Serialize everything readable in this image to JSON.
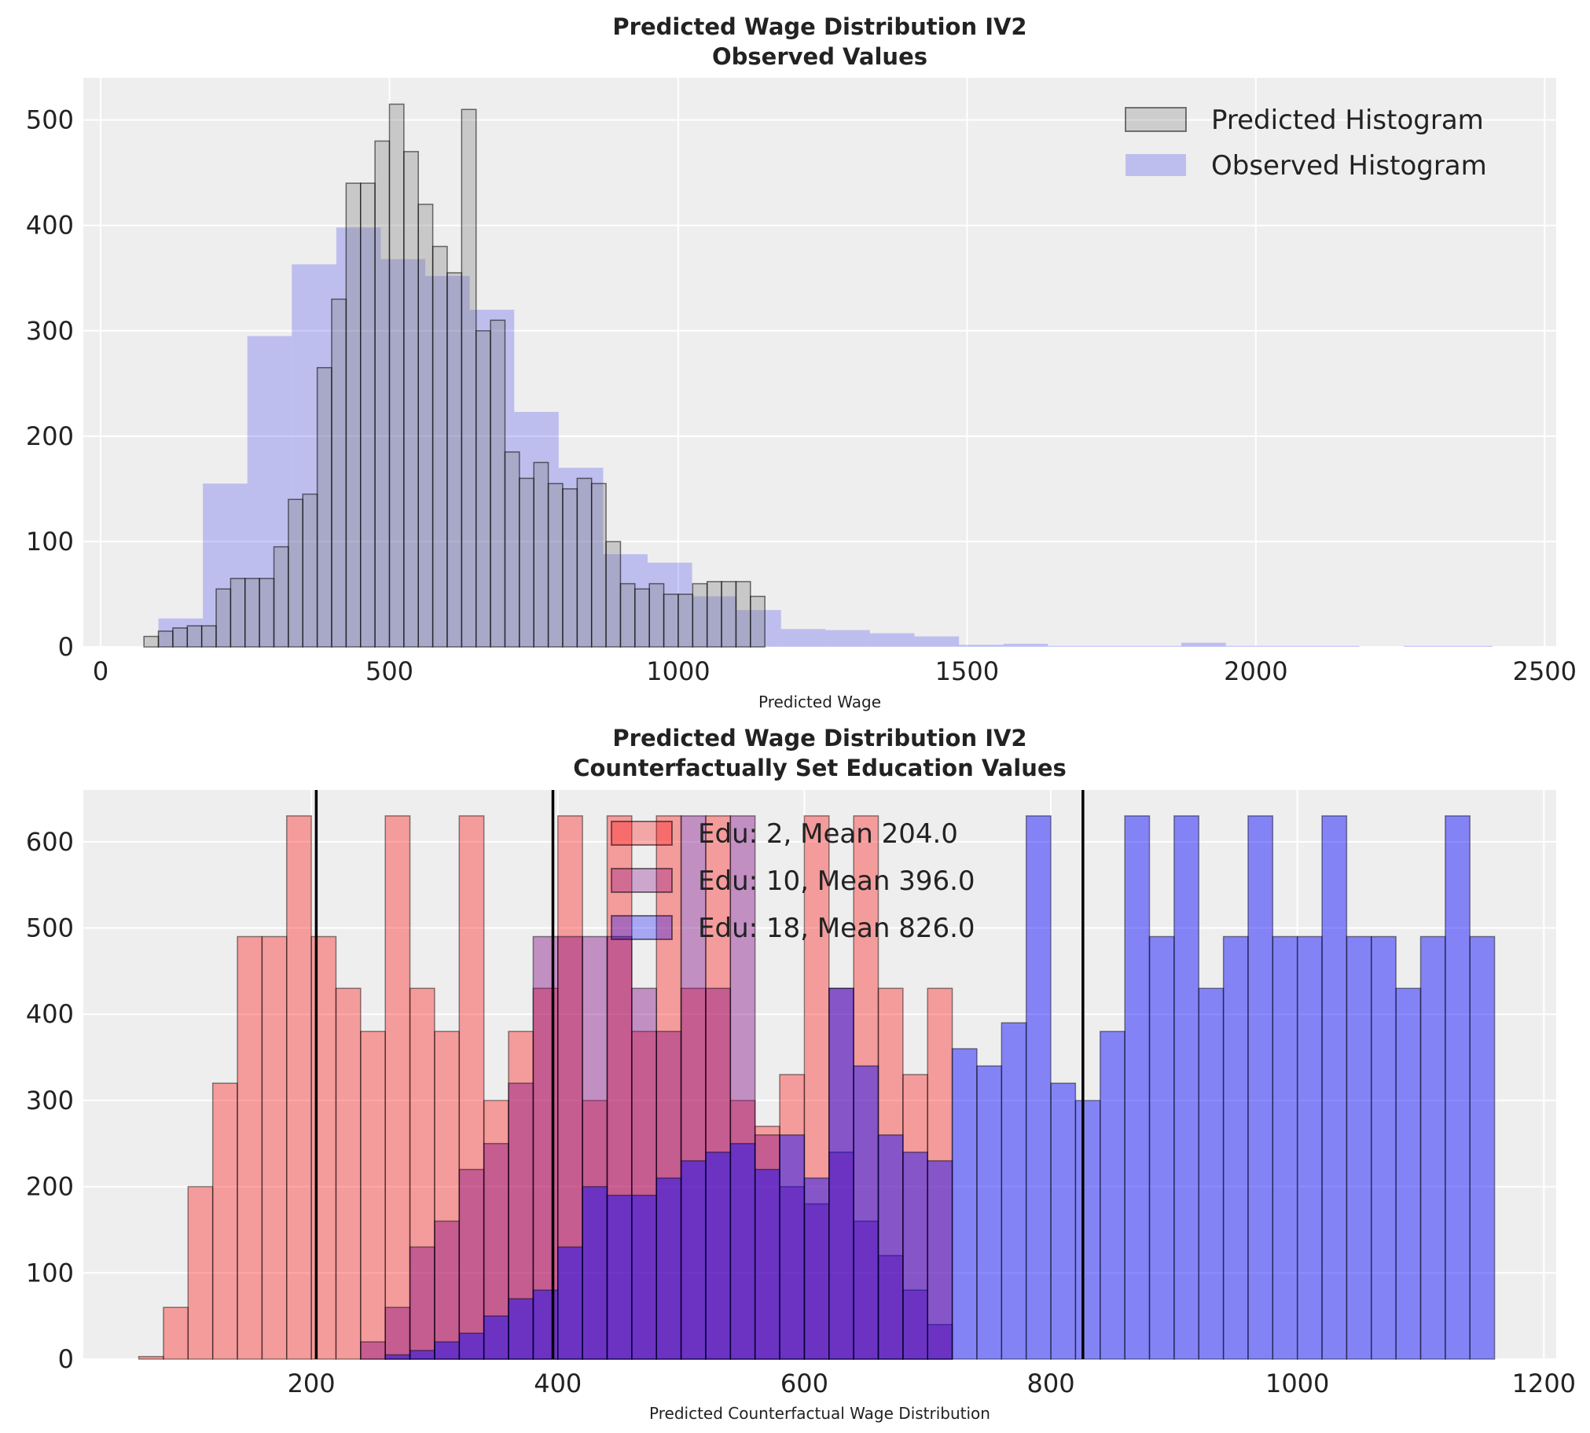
{
  "chart_data": [
    {
      "type": "bar",
      "title": "Predicted Wage Distribution IV2",
      "subtitle": "Observed Values",
      "xlabel": "Predicted Wage",
      "ylabel": "",
      "xlim": [
        -30,
        2520
      ],
      "ylim": [
        0,
        540
      ],
      "xticks": [
        0,
        500,
        1000,
        1500,
        2000,
        2500
      ],
      "yticks": [
        0,
        100,
        200,
        300,
        400,
        500
      ],
      "grid": true,
      "legend": "top-right",
      "series": [
        {
          "name": "Predicted Histogram",
          "color": "#808080",
          "bin_start": 75,
          "bin_width": 25,
          "values": [
            10,
            15,
            18,
            20,
            20,
            55,
            65,
            65,
            65,
            95,
            140,
            145,
            265,
            330,
            440,
            440,
            480,
            515,
            470,
            420,
            380,
            355,
            510,
            300,
            310,
            185,
            160,
            175,
            155,
            150,
            160,
            155,
            100,
            60,
            55,
            60,
            50,
            50,
            60,
            62,
            62,
            62,
            48
          ]
        },
        {
          "name": "Observed Histogram",
          "color": "#0000ee",
          "bin_start": 100,
          "bin_width": 77,
          "values": [
            27,
            155,
            295,
            363,
            398,
            368,
            352,
            320,
            223,
            170,
            88,
            80,
            48,
            35,
            17,
            16,
            13,
            10,
            2,
            3,
            1,
            1,
            1,
            4,
            1,
            1,
            1,
            0,
            1,
            1
          ]
        }
      ]
    },
    {
      "type": "bar",
      "title": "Predicted Wage Distribution IV2",
      "subtitle": "Counterfactually Set Education Values",
      "xlabel": "Predicted Counterfactual Wage Distribution",
      "ylabel": "",
      "xlim": [
        15,
        1210
      ],
      "ylim": [
        0,
        660
      ],
      "xticks": [
        200,
        400,
        600,
        800,
        1000,
        1200
      ],
      "yticks": [
        0,
        100,
        200,
        300,
        400,
        500,
        600
      ],
      "grid": true,
      "legend": "top-center",
      "series": [
        {
          "name": "Edu: 2, Mean 204.0",
          "color": "#ff0000",
          "mean": 204.0,
          "bin_start": 60,
          "bin_width": 20,
          "values": [
            3,
            60,
            200,
            320,
            490,
            490,
            630,
            490,
            430,
            380,
            630,
            430,
            380,
            630,
            300,
            380,
            430,
            630,
            300,
            630,
            380,
            630,
            430,
            630,
            300,
            270,
            330,
            630,
            430,
            630,
            430,
            330,
            430
          ]
        },
        {
          "name": "Edu: 10, Mean 396.0",
          "color": "#800080",
          "mean": 396.0,
          "bin_start": 240,
          "bin_width": 20,
          "values": [
            20,
            60,
            130,
            160,
            220,
            250,
            320,
            490,
            490,
            490,
            490,
            430,
            380,
            630,
            430,
            630,
            260,
            200,
            180,
            240,
            160,
            120,
            80,
            40
          ]
        },
        {
          "name": "Edu: 18, Mean 826.0",
          "color": "#0000ff",
          "mean": 826.0,
          "bin_start": 260,
          "bin_width": 20,
          "values": [
            5,
            10,
            20,
            30,
            50,
            70,
            80,
            130,
            200,
            190,
            190,
            210,
            230,
            240,
            250,
            220,
            260,
            210,
            430,
            340,
            260,
            240,
            230,
            360,
            340,
            390,
            630,
            320,
            300,
            380,
            630,
            490,
            630,
            430,
            490,
            630,
            490,
            490,
            630,
            490,
            490,
            430,
            490,
            630,
            490
          ]
        }
      ]
    }
  ]
}
